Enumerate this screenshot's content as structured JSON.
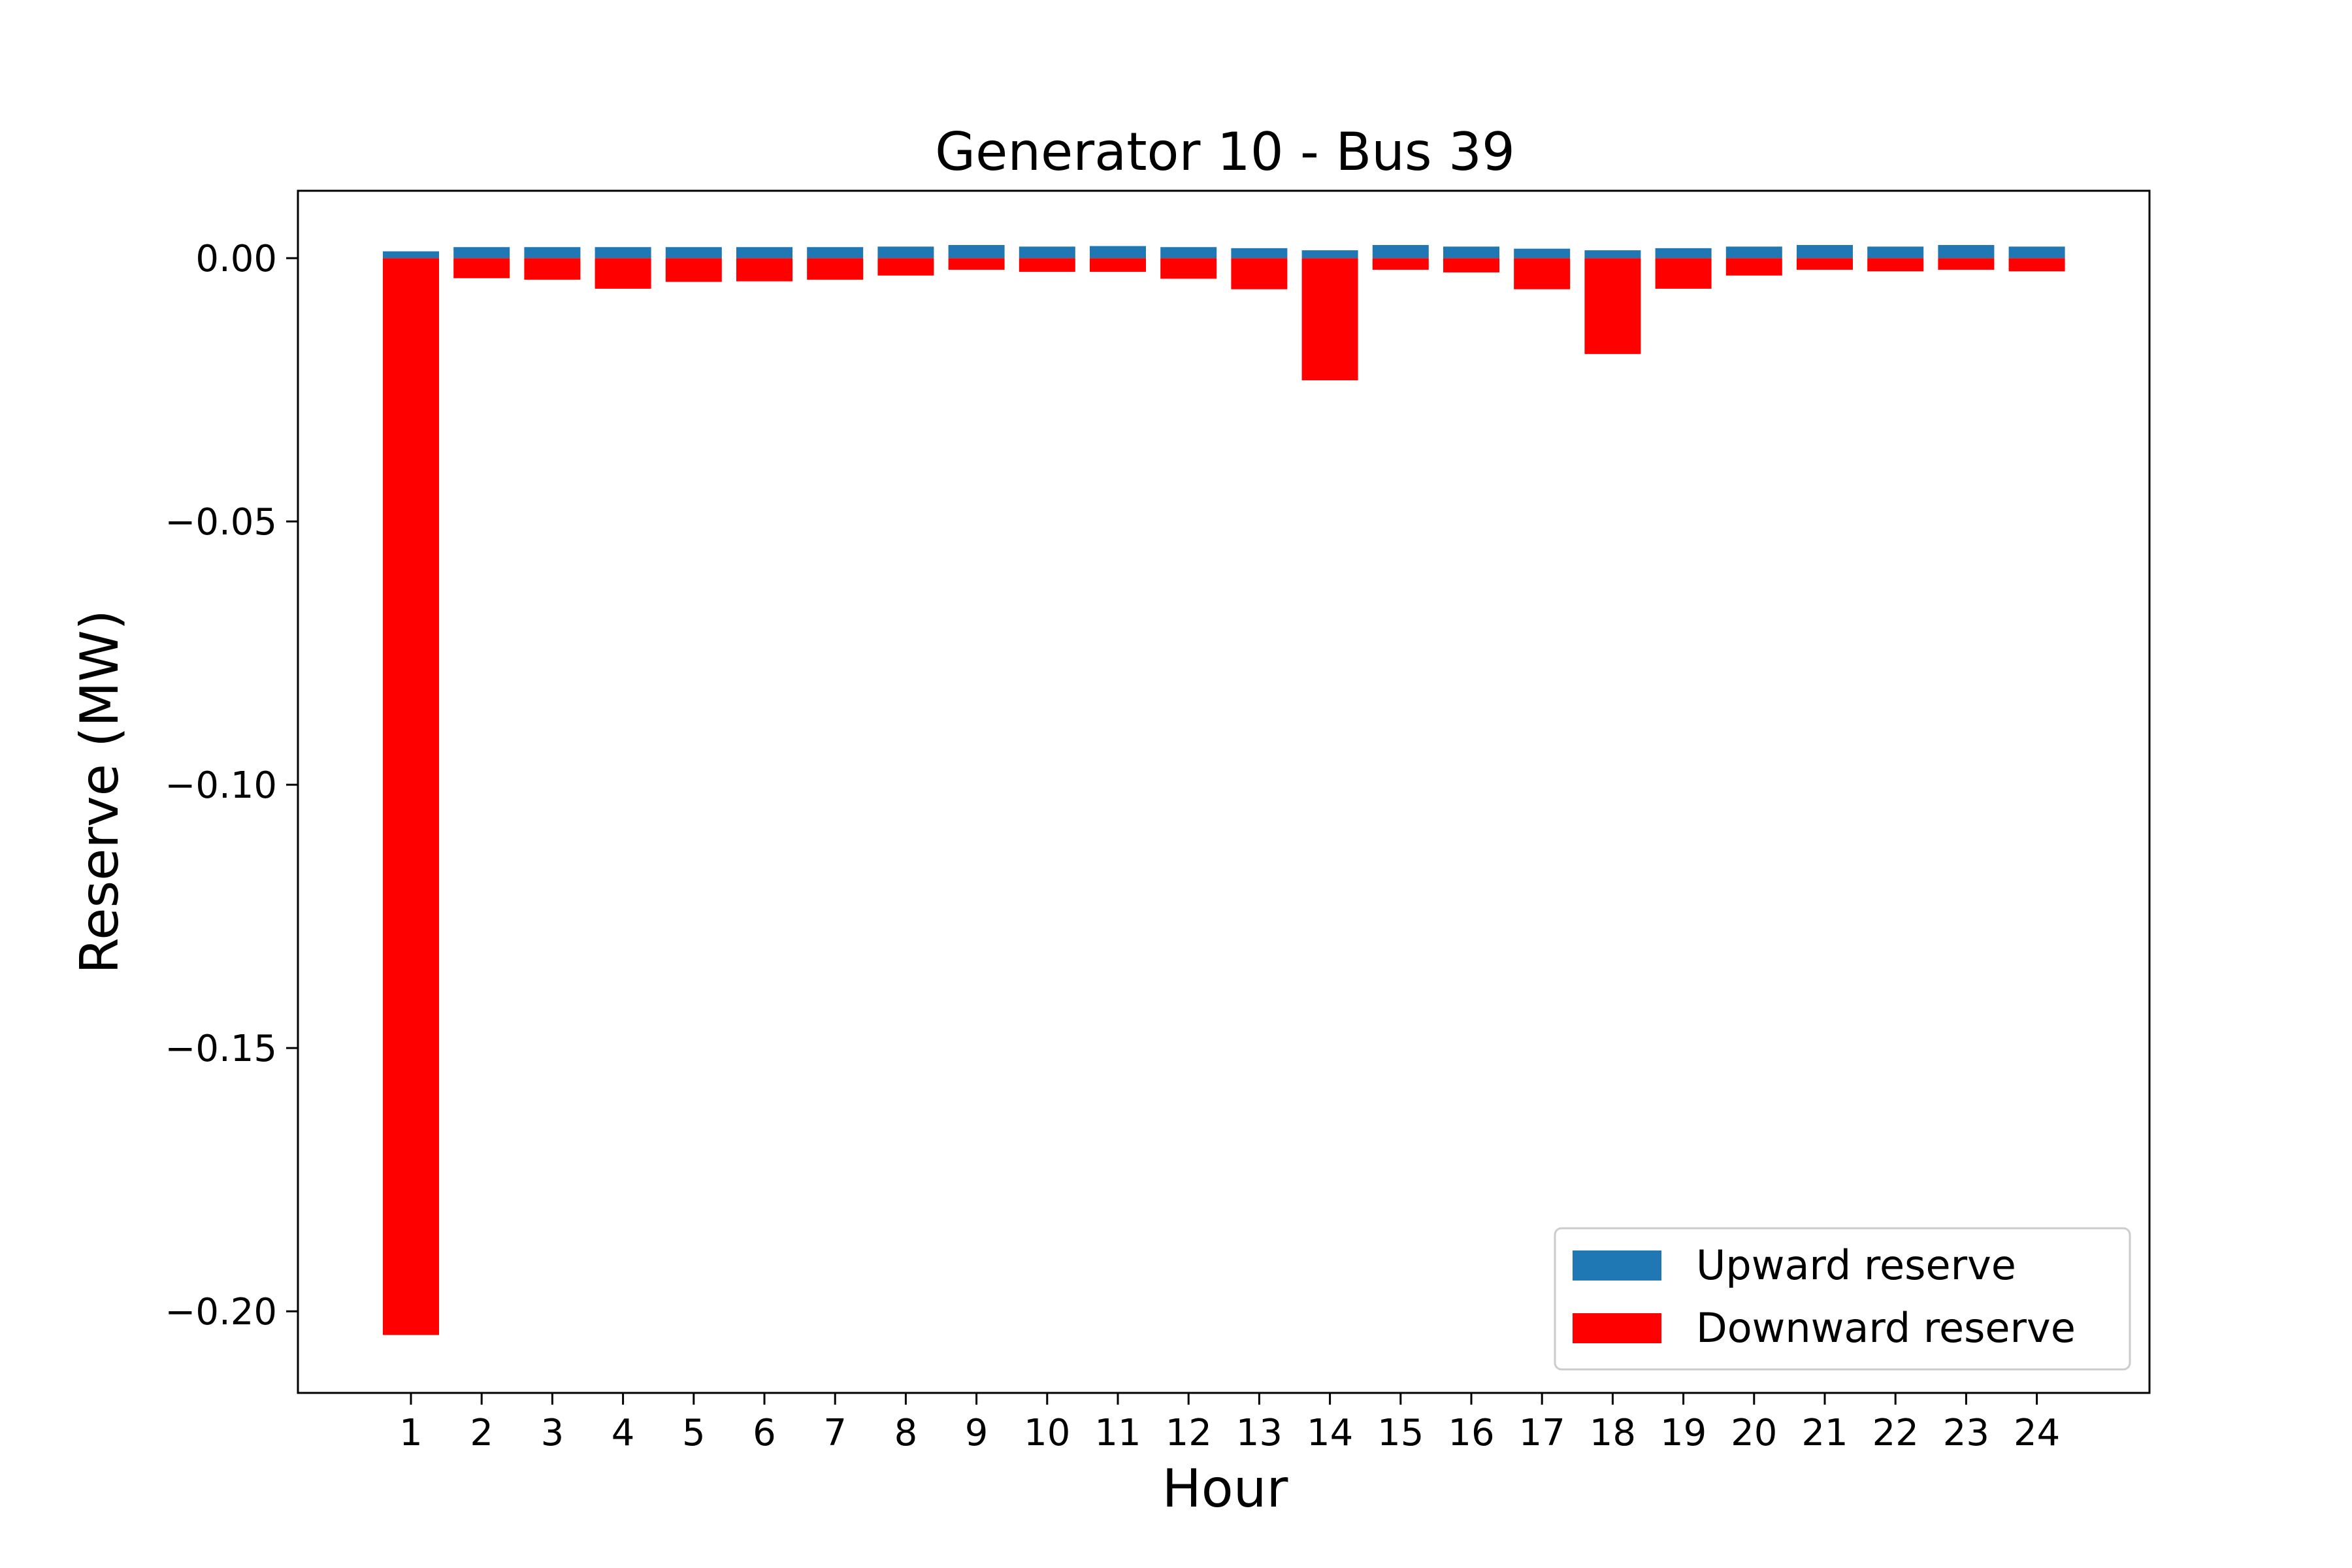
{
  "chart_data": {
    "type": "bar",
    "title": "Generator 10 - Bus 39",
    "xlabel": "Hour",
    "ylabel": "Reserve (MW)",
    "categories": [
      "1",
      "2",
      "3",
      "4",
      "5",
      "6",
      "7",
      "8",
      "9",
      "10",
      "11",
      "12",
      "13",
      "14",
      "15",
      "16",
      "17",
      "18",
      "19",
      "20",
      "21",
      "22",
      "23",
      "24"
    ],
    "yticks": [
      0.0,
      -0.05,
      -0.1,
      -0.15,
      -0.2
    ],
    "ytick_labels": [
      "0.00",
      "−0.05",
      "−0.10",
      "−0.15",
      "−0.20"
    ],
    "ylim": [
      -0.2155,
      0.0128
    ],
    "legend_position": "lower-right",
    "series": [
      {
        "name": "Upward reserve",
        "color": "#1f77b4",
        "values": [
          0.0013,
          0.0021,
          0.0021,
          0.0021,
          0.0021,
          0.0021,
          0.0021,
          0.0022,
          0.0025,
          0.0022,
          0.0023,
          0.0021,
          0.0019,
          0.0015,
          0.0025,
          0.0022,
          0.0018,
          0.0015,
          0.0019,
          0.0022,
          0.0025,
          0.0022,
          0.0025,
          0.0022
        ]
      },
      {
        "name": "Downward reserve",
        "color": "#ff0000",
        "values": [
          -0.2045,
          -0.0038,
          -0.0041,
          -0.0058,
          -0.0045,
          -0.0044,
          -0.0041,
          -0.0033,
          -0.0022,
          -0.0026,
          -0.0026,
          -0.0039,
          -0.0059,
          -0.0232,
          -0.0022,
          -0.0027,
          -0.0059,
          -0.0182,
          -0.0058,
          -0.0033,
          -0.0022,
          -0.0025,
          -0.0022,
          -0.0025
        ]
      }
    ]
  }
}
